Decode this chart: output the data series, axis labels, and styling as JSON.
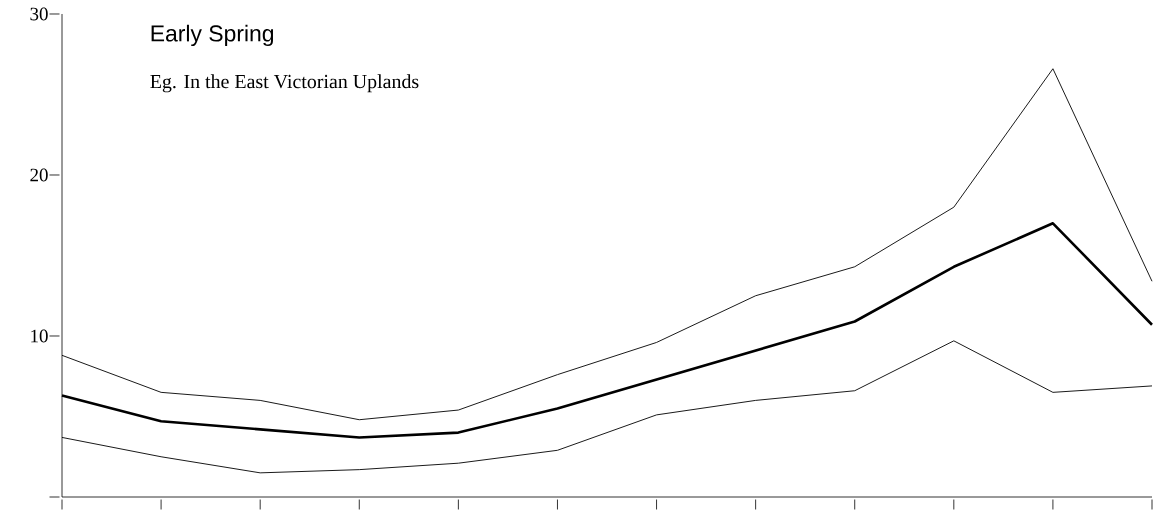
{
  "chart_data": {
    "type": "line",
    "title": "Early Spring",
    "subtitle": "Eg. In the East Victorian Uplands",
    "categories": [
      null,
      null,
      null,
      null,
      null,
      null,
      null,
      null,
      null,
      null,
      null,
      null
    ],
    "series": [
      {
        "color": "#000000",
        "values": [
          8.8,
          6.5,
          6.0,
          4.8,
          5.4,
          7.6,
          9.6,
          12.5,
          14.3,
          18.0,
          26.6,
          13.4
        ]
      },
      {
        "color": "#000000",
        "values": [
          6.3,
          4.7,
          4.2,
          3.7,
          4.0,
          5.5,
          7.3,
          9.1,
          10.9,
          14.3,
          17.0,
          10.7
        ]
      },
      {
        "color": "#000000",
        "values": [
          3.7,
          2.5,
          1.5,
          1.7,
          2.1,
          2.9,
          5.1,
          6.0,
          6.6,
          9.7,
          6.5,
          6.9
        ]
      }
    ],
    "ylim": [
      0,
      30
    ],
    "yticks": [
      {
        "value": 0,
        "label": null
      },
      10,
      20,
      30
    ],
    "grid": false,
    "marker": "none",
    "line_style": "solid"
  }
}
